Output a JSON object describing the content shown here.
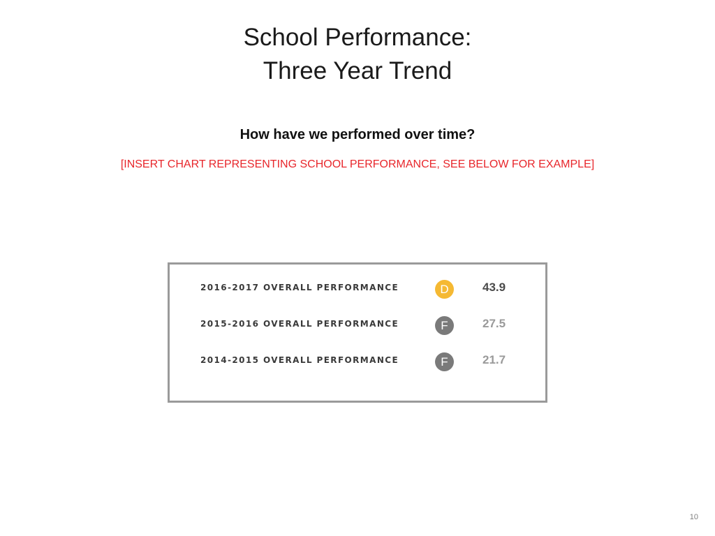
{
  "slide": {
    "title_line_1": "School Performance:",
    "title_line_2": "Three Year Trend",
    "question": "How have we performed over time?",
    "placeholder_note": "[INSERT CHART REPRESENTING SCHOOL PERFORMANCE, SEE BELOW FOR EXAMPLE]",
    "page_number": "10"
  },
  "performance": {
    "rows": [
      {
        "label": "2016-2017 OVERALL PERFORMANCE",
        "grade": "D",
        "score": "43.9",
        "badge_color": "#f5b933",
        "score_color": "#4a4a4a"
      },
      {
        "label": "2015-2016 OVERALL PERFORMANCE",
        "grade": "F",
        "score": "27.5",
        "badge_color": "#7a7a7a",
        "score_color": "#9a9a9a"
      },
      {
        "label": "2014-2015 OVERALL PERFORMANCE",
        "grade": "F",
        "score": "21.7",
        "badge_color": "#7a7a7a",
        "score_color": "#9a9a9a"
      }
    ]
  },
  "colors": {
    "placeholder_text": "#e8262b",
    "panel_border": "#9a9a9a"
  }
}
